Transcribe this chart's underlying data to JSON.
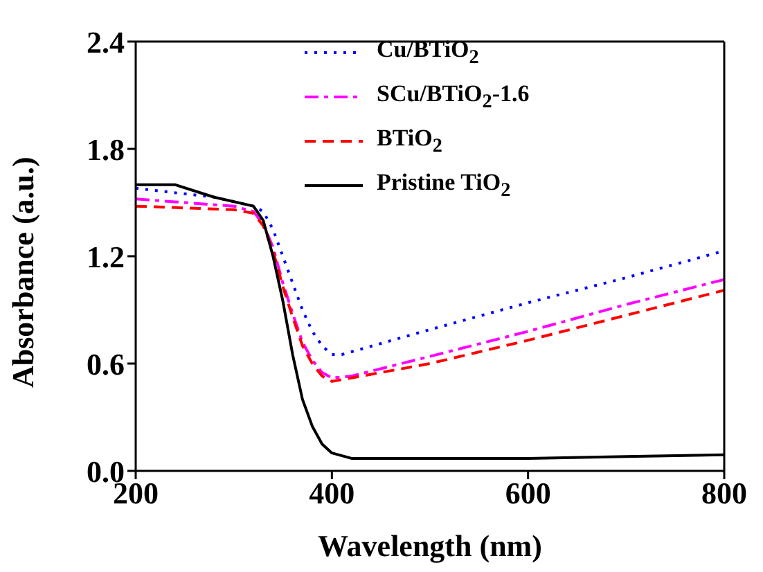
{
  "chart_data": {
    "type": "line",
    "xlabel": "Wavelength (nm)",
    "ylabel": "Absorbance (a.u.)",
    "xlim": [
      200,
      800
    ],
    "xticks": [
      200,
      400,
      600,
      800
    ],
    "ylim": [
      0,
      2.4
    ],
    "yticks": [
      {
        "value": 0,
        "label": "0.0"
      },
      {
        "value": 0.6,
        "label": "0.6"
      },
      {
        "value": 1.2,
        "label": "1.2"
      },
      {
        "value": 1.8,
        "label": "1.8"
      },
      {
        "value": 2.4,
        "label": "2.4"
      }
    ],
    "legend": "top right",
    "marker": "none",
    "series": [
      {
        "name": "Cu/BTiO$_{2}$",
        "color": "#0000ff",
        "line_style": "dotted",
        "x": [
          200,
          280,
          320,
          330,
          340,
          350,
          360,
          370,
          380,
          390,
          400,
          410,
          500,
          600,
          700,
          800
        ],
        "values": [
          1.58,
          1.53,
          1.48,
          1.45,
          1.35,
          1.2,
          1.05,
          0.9,
          0.78,
          0.7,
          0.65,
          0.65,
          0.79,
          0.94,
          1.08,
          1.23
        ]
      },
      {
        "name": "SCu/BTiO$_{2}$-1.6",
        "color": "#ff00ff",
        "line_style": "dashdot",
        "x": [
          200,
          300,
          320,
          330,
          340,
          350,
          360,
          370,
          380,
          390,
          400,
          420,
          500,
          600,
          700,
          800
        ],
        "values": [
          1.52,
          1.48,
          1.45,
          1.38,
          1.25,
          1.05,
          0.88,
          0.72,
          0.62,
          0.55,
          0.52,
          0.53,
          0.64,
          0.78,
          0.93,
          1.07
        ]
      },
      {
        "name": "BTiO$_{2}$",
        "color": "#ff0000",
        "line_style": "dashed",
        "x": [
          200,
          300,
          320,
          330,
          340,
          350,
          360,
          370,
          380,
          390,
          400,
          410,
          500,
          600,
          700,
          800
        ],
        "values": [
          1.48,
          1.46,
          1.44,
          1.37,
          1.23,
          1.03,
          0.86,
          0.7,
          0.6,
          0.53,
          0.5,
          0.51,
          0.6,
          0.73,
          0.87,
          1.01
        ]
      },
      {
        "name": "Pristine TiO$_{2}$",
        "color": "#000000",
        "line_style": "solid",
        "x": [
          200,
          240,
          280,
          320,
          330,
          340,
          350,
          360,
          370,
          380,
          390,
          400,
          420,
          500,
          600,
          700,
          800
        ],
        "values": [
          1.6,
          1.6,
          1.53,
          1.48,
          1.4,
          1.2,
          0.95,
          0.65,
          0.4,
          0.25,
          0.15,
          0.1,
          0.07,
          0.07,
          0.07,
          0.08,
          0.09
        ]
      }
    ]
  }
}
